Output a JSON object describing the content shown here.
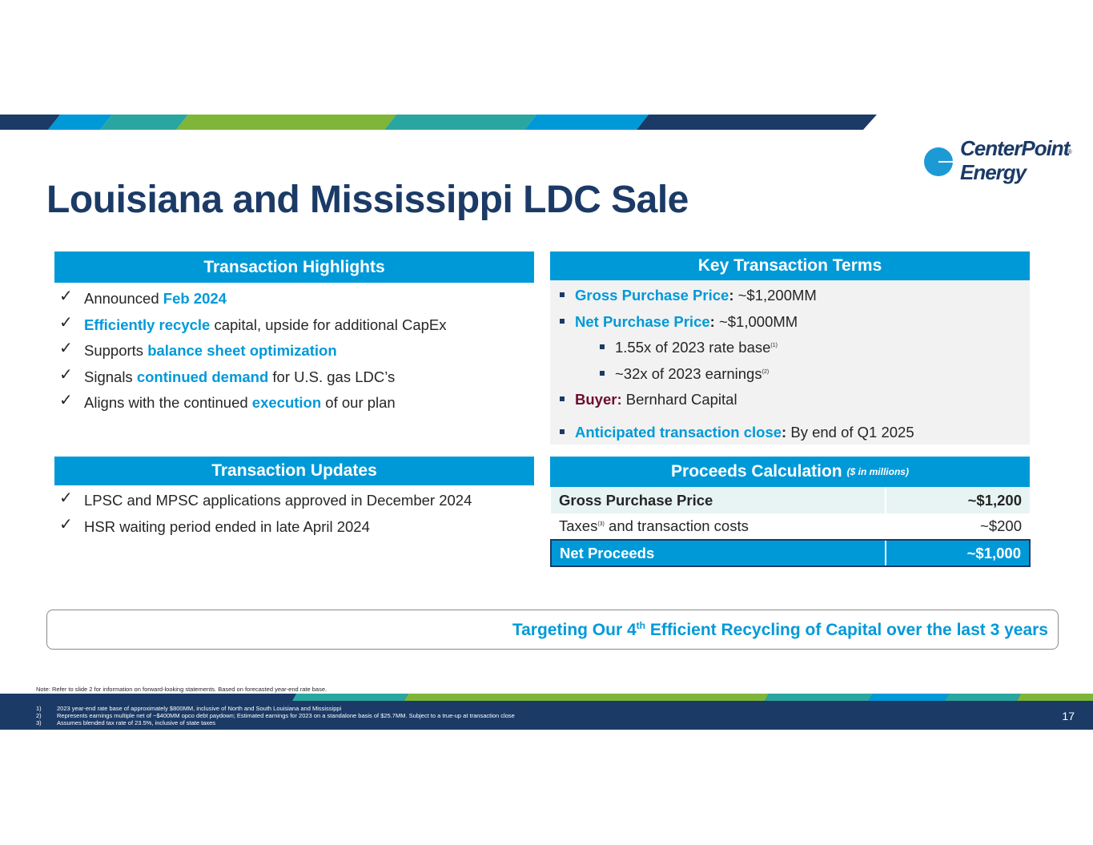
{
  "brand": {
    "logo_line1": "CenterPoint",
    "logo_line2": "Energy",
    "logo_mark": "®",
    "colors": {
      "navy": "#1b3a66",
      "blue": "#0099d8",
      "teal": "#2aa6a0",
      "green": "#7fb539",
      "light_gray": "#f2f2f2",
      "maroon": "#6b0f2a"
    }
  },
  "title": "Louisiana and Mississippi LDC Sale",
  "highlights": {
    "header": "Transaction Highlights",
    "icon": "checkmark-icon",
    "items": [
      {
        "pre": "Announced ",
        "hl": "Feb 2024",
        "post": ""
      },
      {
        "pre": "",
        "hl": "Efficiently recycle",
        "post": " capital, upside for additional CapEx"
      },
      {
        "pre": "Supports ",
        "hl": "balance sheet optimization",
        "post": ""
      },
      {
        "pre": "Signals ",
        "hl": "continued demand",
        "post": " for U.S. gas LDC’s"
      },
      {
        "pre": "Aligns with the continued ",
        "hl": "execution",
        "post": " of our plan"
      }
    ]
  },
  "terms": {
    "header": "Key Transaction Terms",
    "gross_key": "Gross Purchase Price",
    "gross_val": " ~$1,200MM",
    "net_key": "Net Purchase Price",
    "net_val": " ~$1,000MM",
    "sub1": "1.55x of 2023 rate base",
    "sub1_note": "(1)",
    "sub2": "~32x of 2023 earnings",
    "sub2_note": "(2)",
    "buyer_key": "Buyer:",
    "buyer_val": " Bernhard Capital",
    "close_key": "Anticipated transaction close",
    "close_val": " By end of Q1 2025",
    "colon": ":"
  },
  "updates": {
    "header": "Transaction Updates",
    "items": [
      "LPSC and MPSC applications approved in December 2024",
      "HSR waiting period ended in late April 2024"
    ]
  },
  "proceeds": {
    "header": "Proceeds Calculation",
    "header_sub": "($ in millions)",
    "rows": [
      {
        "label": "Gross Purchase Price",
        "value": "~$1,200"
      },
      {
        "label": "Taxes",
        "note": "(3)",
        "label_post": " and transaction costs",
        "value": "~$200"
      },
      {
        "label": "Net Proceeds",
        "value": "~$1,000"
      }
    ]
  },
  "callout": {
    "pre": "Targeting Our 4",
    "sup": "th",
    "post": " Efficient Recycling of Capital over the last 3 years"
  },
  "note": "Note: Refer to slide 2 for information on forward-looking statements. Based on forecasted year-end rate base.",
  "footnotes": [
    {
      "num": "1)",
      "text": "2023 year-end rate base of approximately $800MM, inclusive of North and South Louisiana and Mississippi"
    },
    {
      "num": "2)",
      "text": "Represents earnings multiple net of ~$400MM opco debt paydown; Estimated earnings for 2023 on a standalone basis of $25.7MM. Subject to a true-up at transaction close"
    },
    {
      "num": "3)",
      "text": "Assumes blended tax rate of 23.5%, inclusive of state taxes"
    }
  ],
  "page_number": "17"
}
